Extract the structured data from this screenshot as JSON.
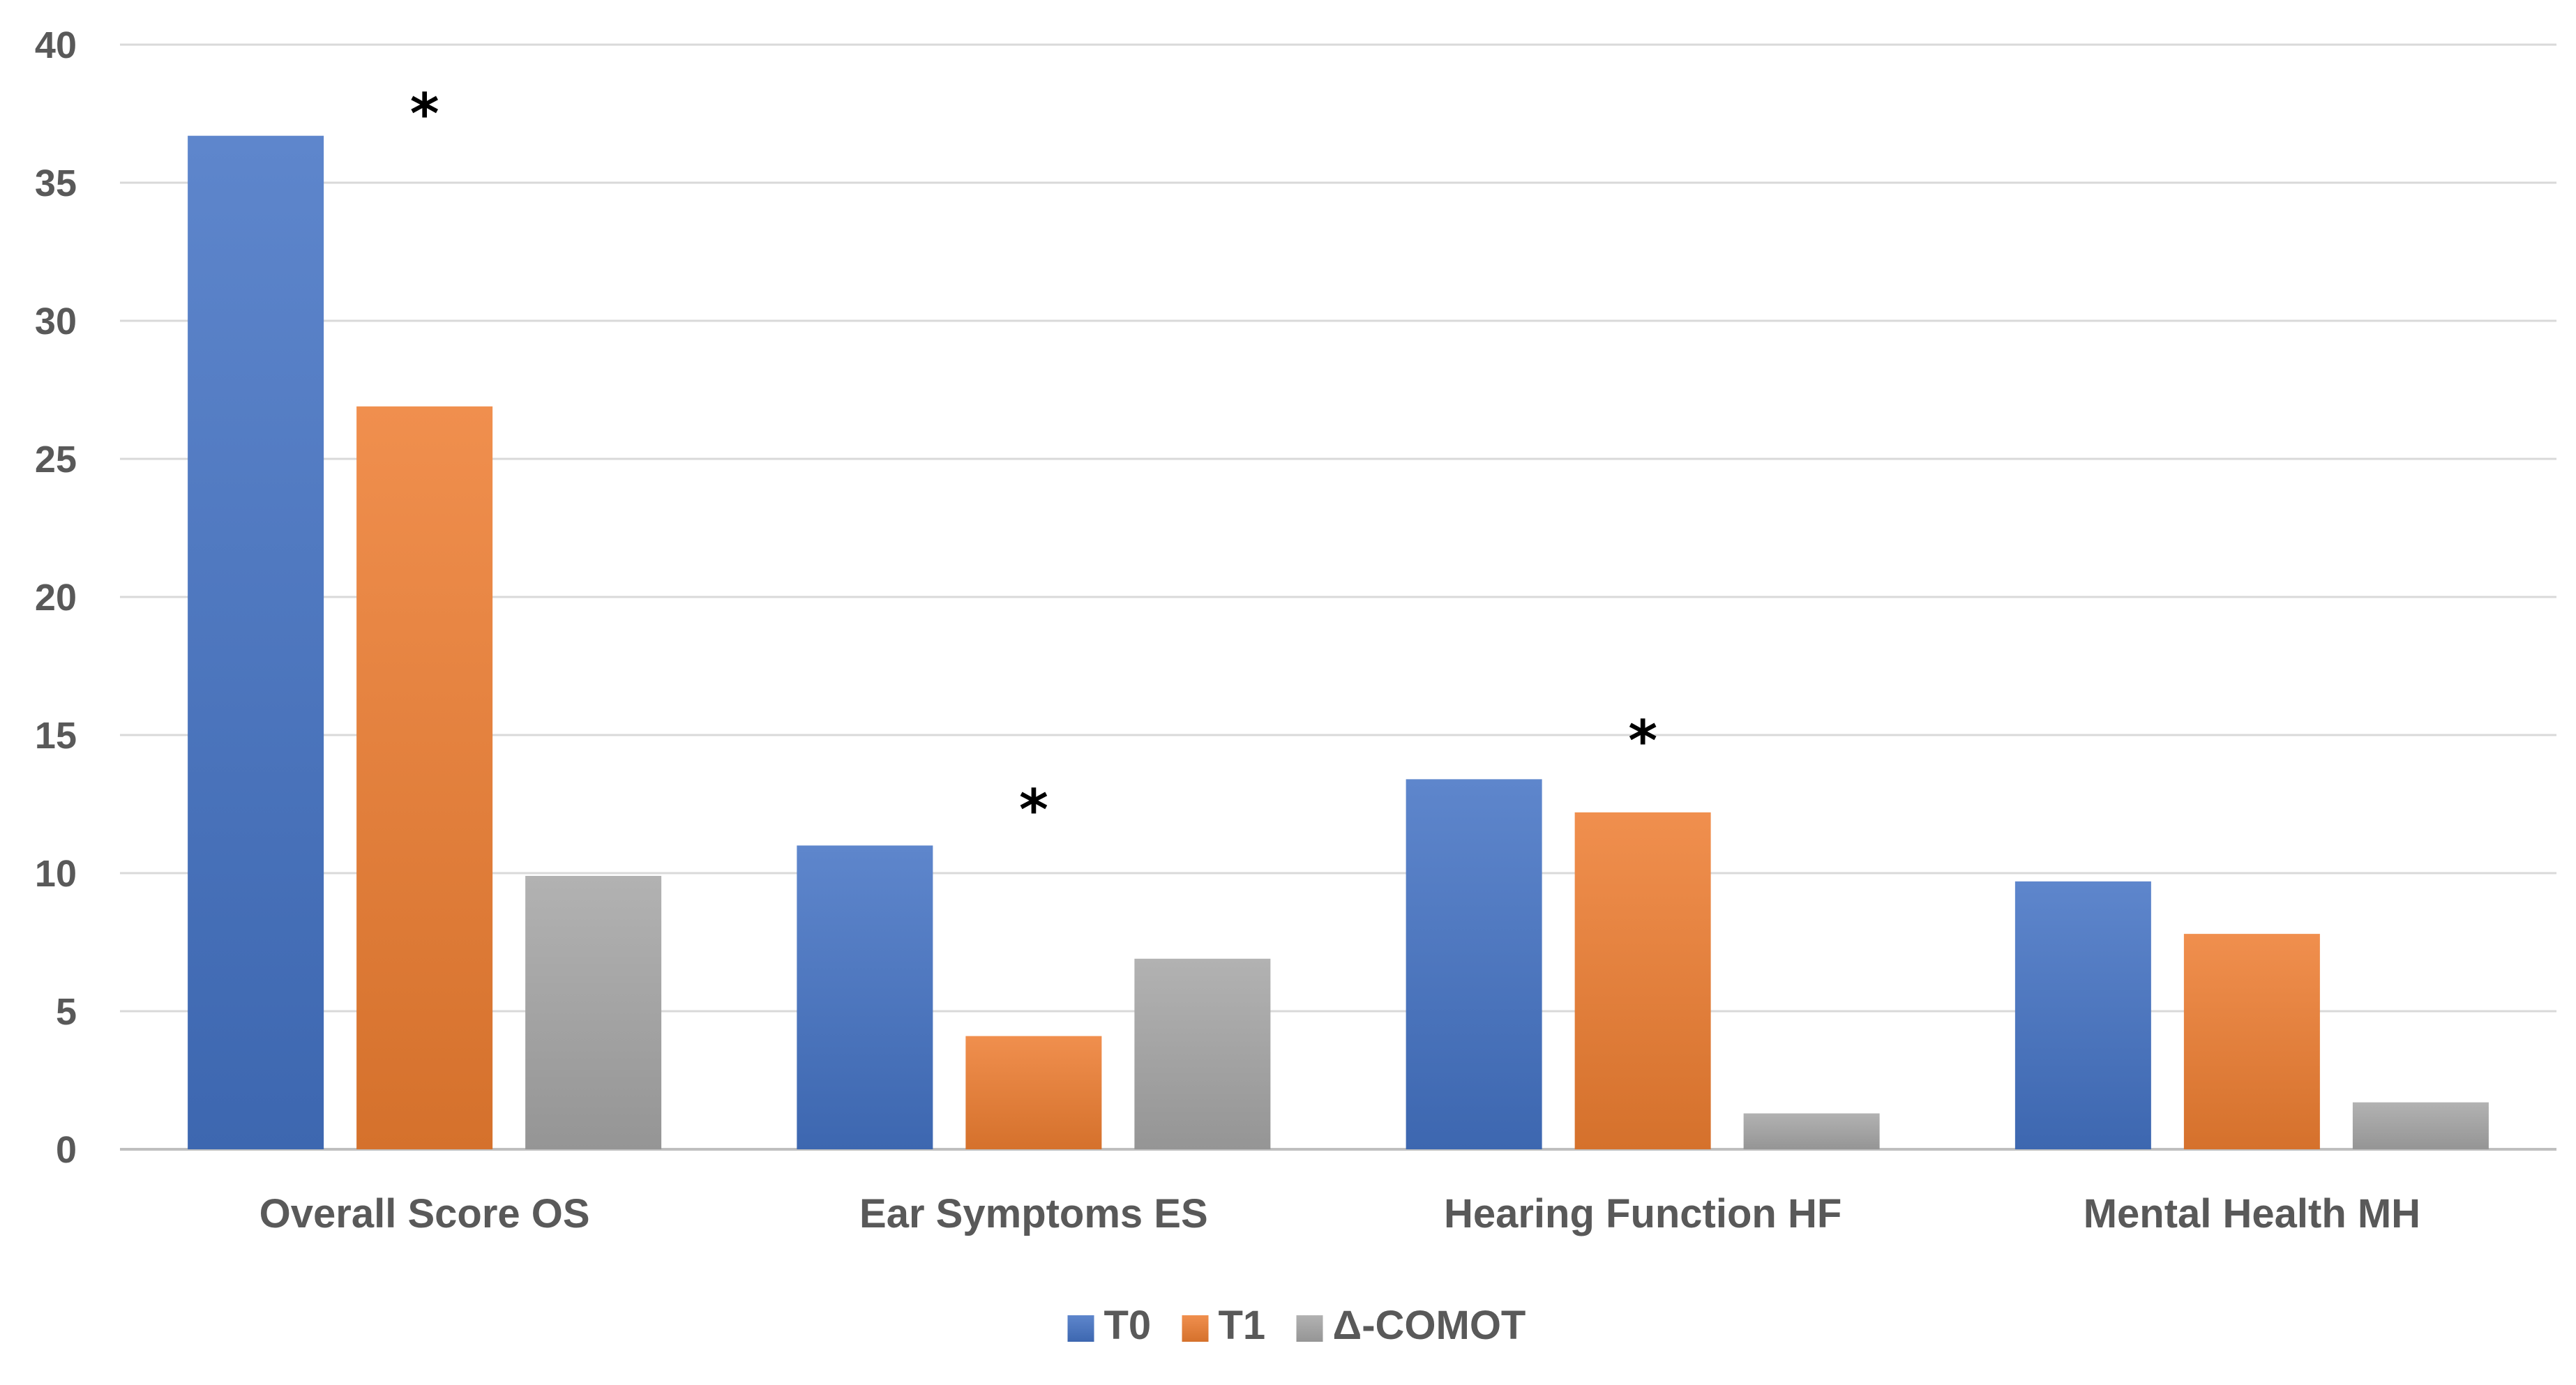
{
  "chart_data": {
    "type": "bar",
    "title": "",
    "xlabel": "",
    "ylabel": "",
    "ylim": [
      0,
      40
    ],
    "yticks": [
      0,
      5,
      10,
      15,
      20,
      25,
      30,
      35,
      40
    ],
    "grid": true,
    "legend_position": "bottom-center",
    "categories": [
      "Overall Score OS",
      "Ear Symptoms ES",
      "Hearing Function HF",
      "Mental Health MH"
    ],
    "series": [
      {
        "name": "T0",
        "color": "#4472C4",
        "values": [
          36.7,
          11.0,
          13.4,
          9.7
        ]
      },
      {
        "name": "T1",
        "color": "#ED7D31",
        "values": [
          26.9,
          4.1,
          12.2,
          7.8
        ]
      },
      {
        "name": "Δ-COMOT",
        "color": "#A5A5A5",
        "values": [
          9.9,
          6.9,
          1.3,
          1.7
        ]
      }
    ],
    "annotations": [
      {
        "text": "*",
        "category_index": 0,
        "value": 37.5
      },
      {
        "text": "*",
        "category_index": 1,
        "value": 12.3
      },
      {
        "text": "*",
        "category_index": 2,
        "value": 14.8
      }
    ]
  }
}
